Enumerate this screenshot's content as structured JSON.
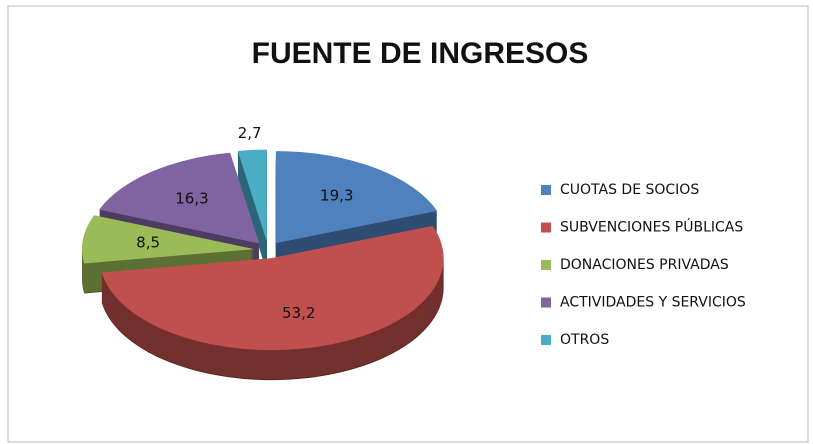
{
  "chart_data": {
    "type": "pie",
    "title": "FUENTE DE INGRESOS",
    "categories": [
      "CUOTAS DE SOCIOS",
      "SUBVENCIONES PÚBLICAS",
      "DONACIONES PRIVADAS",
      "ACTIVIDADES Y SERVICIOS",
      "OTROS"
    ],
    "values": [
      19.3,
      53.2,
      8.5,
      16.3,
      2.7
    ],
    "value_labels": [
      "19,3",
      "53,2",
      "8,5",
      "16,3",
      "2,7"
    ],
    "colors": [
      "#4f81bd",
      "#c0504d",
      "#9bbb59",
      "#8064a2",
      "#4bacc6"
    ],
    "legend": "right"
  }
}
